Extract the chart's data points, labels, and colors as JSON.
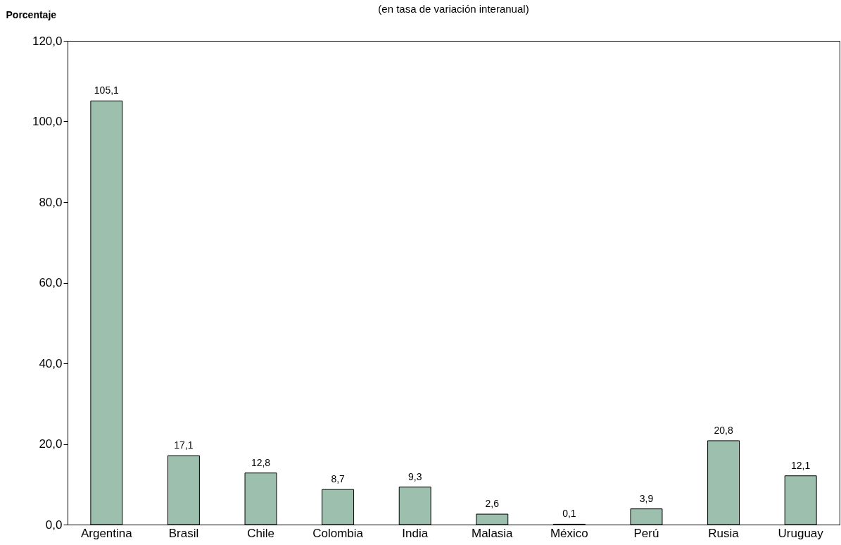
{
  "chart_data": {
    "type": "bar",
    "subtitle": "(en tasa de variación interanual)",
    "ylabel": "Porcentaje",
    "categories": [
      "Argentina",
      "Brasil",
      "Chile",
      "Colombia",
      "India",
      "Malasia",
      "México",
      "Perú",
      "Rusia",
      "Uruguay"
    ],
    "values": [
      105.1,
      17.1,
      12.8,
      8.7,
      9.3,
      2.6,
      0.1,
      3.9,
      20.8,
      12.1
    ],
    "value_labels": [
      "105,1",
      "17,1",
      "12,8",
      "8,7",
      "9,3",
      "2,6",
      "0,1",
      "3,9",
      "20,8",
      "12,1"
    ],
    "color": "#9dbfae",
    "ylim": [
      0,
      120
    ],
    "yticks": [
      {
        "value": 0,
        "label": "0,0"
      },
      {
        "value": 20,
        "label": "20,0"
      },
      {
        "value": 40,
        "label": "40,0"
      },
      {
        "value": 60,
        "label": "60,0"
      },
      {
        "value": 80,
        "label": "80,0"
      },
      {
        "value": 100,
        "label": "100,0"
      },
      {
        "value": 120,
        "label": "120,0"
      }
    ],
    "grid": false
  }
}
